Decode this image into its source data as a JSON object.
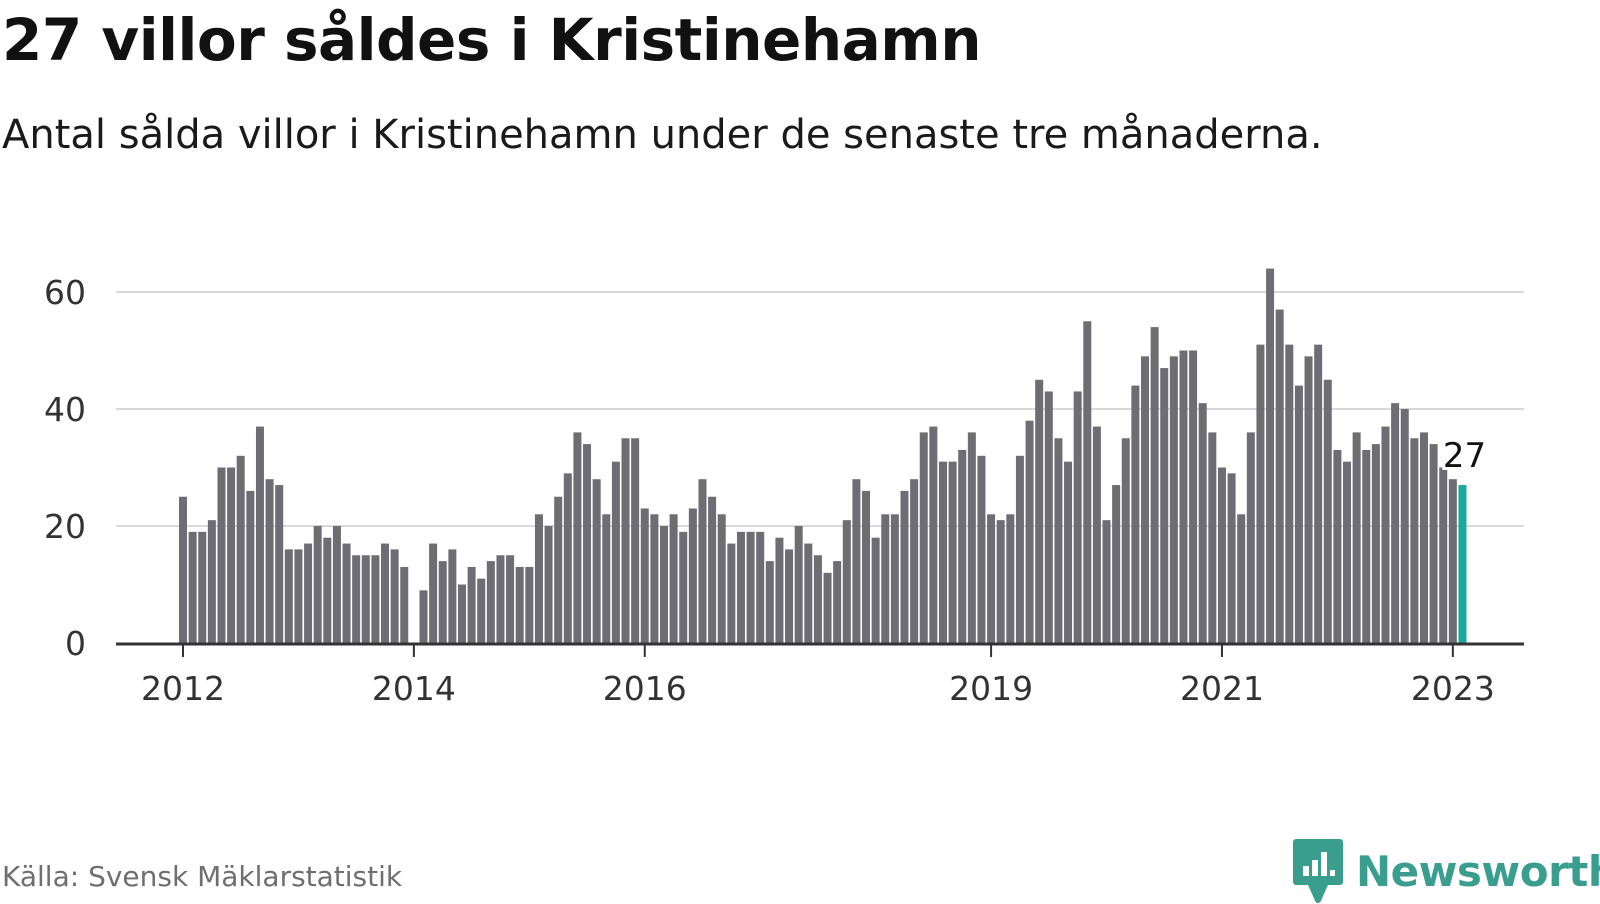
{
  "title": "27 villor såldes i Kristinehamn",
  "subtitle": "Antal sålda villor i Kristinehamn under de senaste tre månaderna.",
  "source": "Källa: Svensk Mäklarstatistik",
  "brand": {
    "name": "Newsworthy",
    "icon": "newsworthy-logo-icon"
  },
  "colors": {
    "bar": "#6e6d73",
    "highlight": "#1aa99d",
    "grid": "#d9d9d9",
    "axis": "#333333",
    "brand": "#3a9e8f"
  },
  "chart_data": {
    "type": "bar",
    "title": "27 villor såldes i Kristinehamn",
    "xlabel": "",
    "ylabel": "",
    "ylim": [
      0,
      65
    ],
    "yticks": [
      0,
      20,
      40,
      60
    ],
    "grid": true,
    "xticks": [
      {
        "label": "2012",
        "index": 0
      },
      {
        "label": "2014",
        "index": 24
      },
      {
        "label": "2016",
        "index": 48
      },
      {
        "label": "2019",
        "index": 84
      },
      {
        "label": "2021",
        "index": 108
      },
      {
        "label": "2023",
        "index": 132
      }
    ],
    "values": [
      25,
      19,
      19,
      21,
      30,
      30,
      32,
      26,
      37,
      28,
      27,
      16,
      16,
      17,
      20,
      18,
      20,
      17,
      15,
      15,
      15,
      17,
      16,
      13,
      null,
      9,
      17,
      14,
      16,
      10,
      13,
      11,
      14,
      15,
      15,
      13,
      13,
      22,
      20,
      25,
      29,
      36,
      34,
      28,
      22,
      31,
      35,
      35,
      23,
      22,
      20,
      22,
      19,
      23,
      28,
      25,
      22,
      17,
      19,
      19,
      19,
      14,
      18,
      16,
      20,
      17,
      15,
      12,
      14,
      21,
      28,
      26,
      18,
      22,
      22,
      26,
      28,
      36,
      37,
      31,
      31,
      33,
      36,
      32,
      22,
      21,
      22,
      32,
      38,
      45,
      43,
      35,
      31,
      43,
      55,
      37,
      21,
      27,
      35,
      44,
      49,
      54,
      47,
      49,
      50,
      50,
      41,
      36,
      30,
      29,
      22,
      36,
      51,
      64,
      57,
      51,
      44,
      49,
      51,
      45,
      33,
      31,
      36,
      33,
      34,
      37,
      41,
      40,
      35,
      36,
      34,
      30,
      28,
      27
    ],
    "highlight_index": 133,
    "highlight_label": "27"
  }
}
